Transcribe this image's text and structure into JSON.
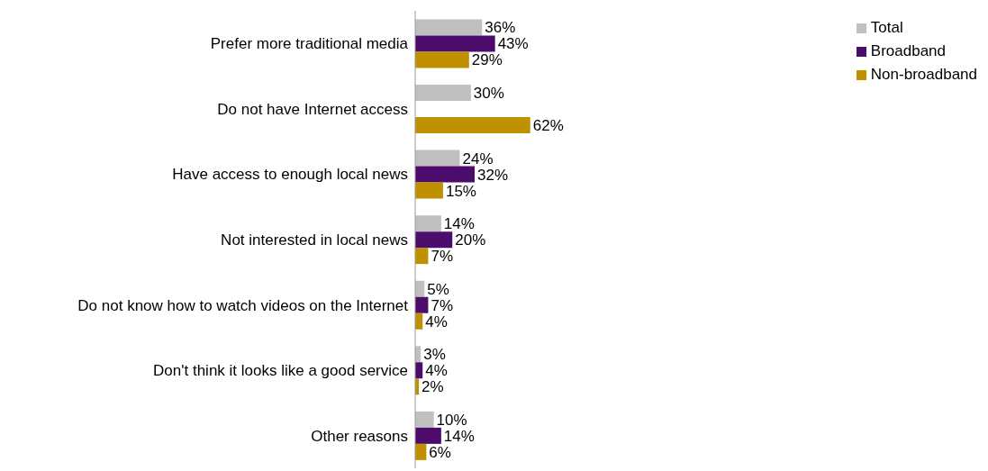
{
  "chart_data": {
    "type": "bar",
    "orientation": "horizontal",
    "categories": [
      "Prefer more traditional media",
      "Do not have Internet access",
      "Have access to enough local news",
      "Not interested in local news",
      "Do not know how to watch videos on the Internet",
      "Don't think it looks like a good service",
      "Other reasons"
    ],
    "series": [
      {
        "name": "Total",
        "color": "#c0c0c0",
        "values": [
          36,
          30,
          24,
          14,
          5,
          3,
          10
        ],
        "value_labels": [
          "36%",
          "30%",
          "24%",
          "14%",
          "5%",
          "3%",
          "10%"
        ]
      },
      {
        "name": "Broadband",
        "color": "#4b0c6b",
        "values": [
          43,
          null,
          32,
          20,
          7,
          4,
          14
        ],
        "value_labels": [
          "43%",
          null,
          "32%",
          "20%",
          "7%",
          "4%",
          "14%"
        ]
      },
      {
        "name": "Non-broadband",
        "color": "#bf9000",
        "values": [
          29,
          62,
          15,
          7,
          4,
          2,
          6
        ],
        "value_labels": [
          "29%",
          "62%",
          "15%",
          "7%",
          "4%",
          "2%",
          "6%"
        ]
      }
    ],
    "legend": "top right",
    "grid": false
  }
}
